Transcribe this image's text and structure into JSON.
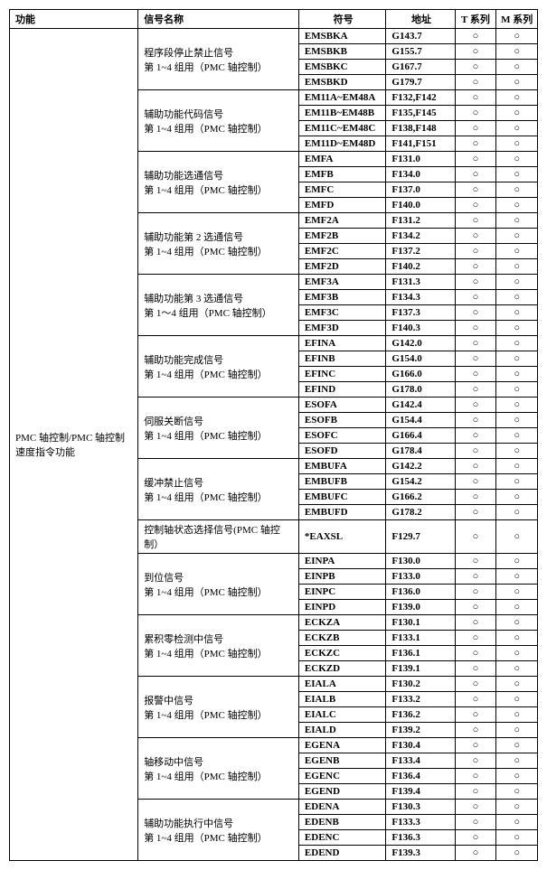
{
  "headers": {
    "func": "功能",
    "signal": "信号名称",
    "symbol": "符号",
    "addr": "地址",
    "t": "T 系列",
    "m": "M 系列"
  },
  "circle": "○",
  "mainFunction": "PMC 轴控制/PMC 轴控制速度指令功能",
  "groups": [
    {
      "signal": "程序段停止禁止信号\n第 1~4 组用（PMC 轴控制）",
      "rows": [
        {
          "symbol": "EMSBKA",
          "addr": "G143.7",
          "t": true,
          "m": true
        },
        {
          "symbol": "EMSBKB",
          "addr": "G155.7",
          "t": true,
          "m": true
        },
        {
          "symbol": "EMSBKC",
          "addr": "G167.7",
          "t": true,
          "m": true
        },
        {
          "symbol": "EMSBKD",
          "addr": "G179.7",
          "t": true,
          "m": true
        }
      ]
    },
    {
      "signal": "辅助功能代码信号\n第 1~4 组用（PMC 轴控制）",
      "rows": [
        {
          "symbol": "EM11A~EM48A",
          "addr": "F132,F142",
          "t": true,
          "m": true
        },
        {
          "symbol": "EM11B~EM48B",
          "addr": "F135,F145",
          "t": true,
          "m": true
        },
        {
          "symbol": "EM11C~EM48C",
          "addr": "F138,F148",
          "t": true,
          "m": true
        },
        {
          "symbol": "EM11D~EM48D",
          "addr": "F141,F151",
          "t": true,
          "m": true
        }
      ]
    },
    {
      "signal": "辅助功能选通信号\n第 1~4 组用（PMC 轴控制）",
      "rows": [
        {
          "symbol": "EMFA",
          "addr": "F131.0",
          "t": true,
          "m": true
        },
        {
          "symbol": "EMFB",
          "addr": "F134.0",
          "t": true,
          "m": true
        },
        {
          "symbol": "EMFC",
          "addr": "F137.0",
          "t": true,
          "m": true
        },
        {
          "symbol": "EMFD",
          "addr": "F140.0",
          "t": true,
          "m": true
        }
      ]
    },
    {
      "signal": "辅助功能第 2 选通信号\n第 1~4 组用（PMC 轴控制）",
      "rows": [
        {
          "symbol": "EMF2A",
          "addr": "F131.2",
          "t": true,
          "m": true
        },
        {
          "symbol": "EMF2B",
          "addr": "F134.2",
          "t": true,
          "m": true
        },
        {
          "symbol": "EMF2C",
          "addr": "F137.2",
          "t": true,
          "m": true
        },
        {
          "symbol": "EMF2D",
          "addr": "F140.2",
          "t": true,
          "m": true
        }
      ]
    },
    {
      "signal": "辅助功能第 3 选通信号\n第 1～4 组用（PMC 轴控制）",
      "rows": [
        {
          "symbol": "EMF3A",
          "addr": "F131.3",
          "t": true,
          "m": true
        },
        {
          "symbol": "EMF3B",
          "addr": "F134.3",
          "t": true,
          "m": true
        },
        {
          "symbol": "EMF3C",
          "addr": "F137.3",
          "t": true,
          "m": true
        },
        {
          "symbol": "EMF3D",
          "addr": "F140.3",
          "t": true,
          "m": true
        }
      ]
    },
    {
      "signal": "辅助功能完成信号\n第 1~4 组用（PMC 轴控制）",
      "rows": [
        {
          "symbol": "EFINA",
          "addr": "G142.0",
          "t": true,
          "m": true
        },
        {
          "symbol": "EFINB",
          "addr": "G154.0",
          "t": true,
          "m": true
        },
        {
          "symbol": "EFINC",
          "addr": "G166.0",
          "t": true,
          "m": true
        },
        {
          "symbol": "EFIND",
          "addr": "G178.0",
          "t": true,
          "m": true
        }
      ]
    },
    {
      "signal": "伺服关断信号\n第 1~4 组用（PMC 轴控制）",
      "rows": [
        {
          "symbol": "ESOFA",
          "addr": "G142.4",
          "t": true,
          "m": true
        },
        {
          "symbol": "ESOFB",
          "addr": "G154.4",
          "t": true,
          "m": true
        },
        {
          "symbol": "ESOFC",
          "addr": "G166.4",
          "t": true,
          "m": true
        },
        {
          "symbol": "ESOFD",
          "addr": "G178.4",
          "t": true,
          "m": true
        }
      ]
    },
    {
      "signal": "缓冲禁止信号\n第 1~4 组用（PMC 轴控制）",
      "rows": [
        {
          "symbol": "EMBUFA",
          "addr": "G142.2",
          "t": true,
          "m": true
        },
        {
          "symbol": "EMBUFB",
          "addr": "G154.2",
          "t": true,
          "m": true
        },
        {
          "symbol": "EMBUFC",
          "addr": "G166.2",
          "t": true,
          "m": true
        },
        {
          "symbol": "EMBUFD",
          "addr": "G178.2",
          "t": true,
          "m": true
        }
      ]
    },
    {
      "signal": "控制轴状态选择信号(PMC 轴控制）",
      "rows": [
        {
          "symbol": "*EAXSL",
          "addr": "F129.7",
          "t": true,
          "m": true
        }
      ]
    },
    {
      "signal": "到位信号\n第 1~4 组用（PMC 轴控制）",
      "rows": [
        {
          "symbol": "EINPA",
          "addr": "F130.0",
          "t": true,
          "m": true
        },
        {
          "symbol": "EINPB",
          "addr": "F133.0",
          "t": true,
          "m": true
        },
        {
          "symbol": "EINPC",
          "addr": "F136.0",
          "t": true,
          "m": true
        },
        {
          "symbol": "EINPD",
          "addr": "F139.0",
          "t": true,
          "m": true
        }
      ]
    },
    {
      "signal": "累积零检测中信号\n第 1~4 组用（PMC 轴控制）",
      "rows": [
        {
          "symbol": "ECKZA",
          "addr": "F130.1",
          "t": true,
          "m": true
        },
        {
          "symbol": "ECKZB",
          "addr": "F133.1",
          "t": true,
          "m": true
        },
        {
          "symbol": "ECKZC",
          "addr": "F136.1",
          "t": true,
          "m": true
        },
        {
          "symbol": "ECKZD",
          "addr": "F139.1",
          "t": true,
          "m": true
        }
      ]
    },
    {
      "signal": "报警中信号\n第 1~4 组用（PMC 轴控制）",
      "rows": [
        {
          "symbol": "EIALA",
          "addr": "F130.2",
          "t": true,
          "m": true
        },
        {
          "symbol": "EIALB",
          "addr": "F133.2",
          "t": true,
          "m": true
        },
        {
          "symbol": "EIALC",
          "addr": "F136.2",
          "t": true,
          "m": true
        },
        {
          "symbol": "EIALD",
          "addr": "F139.2",
          "t": true,
          "m": true
        }
      ]
    },
    {
      "signal": "轴移动中信号\n第 1~4 组用（PMC 轴控制）",
      "rows": [
        {
          "symbol": "EGENA",
          "addr": "F130.4",
          "t": true,
          "m": true
        },
        {
          "symbol": "EGENB",
          "addr": "F133.4",
          "t": true,
          "m": true
        },
        {
          "symbol": "EGENC",
          "addr": "F136.4",
          "t": true,
          "m": true
        },
        {
          "symbol": "EGEND",
          "addr": "F139.4",
          "t": true,
          "m": true
        }
      ]
    },
    {
      "signal": "辅助功能执行中信号\n第 1~4 组用（PMC 轴控制）",
      "rows": [
        {
          "symbol": "EDENA",
          "addr": "F130.3",
          "t": true,
          "m": true
        },
        {
          "symbol": "EDENB",
          "addr": "F133.3",
          "t": true,
          "m": true
        },
        {
          "symbol": "EDENC",
          "addr": "F136.3",
          "t": true,
          "m": true
        },
        {
          "symbol": "EDEND",
          "addr": "F139.3",
          "t": true,
          "m": true
        }
      ]
    }
  ]
}
